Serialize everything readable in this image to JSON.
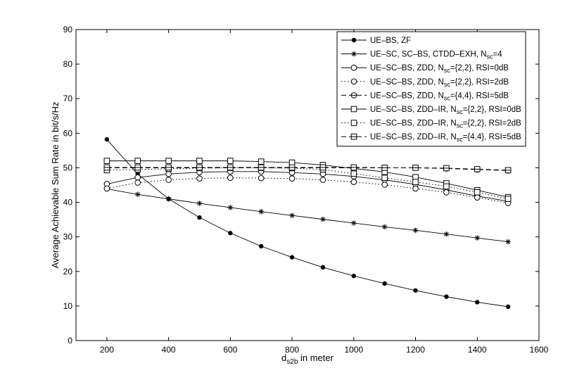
{
  "chart_data": {
    "type": "line",
    "title": "",
    "xlabel_main": "d",
    "xlabel_sub": "s2b",
    "xlabel_rest": " in meter",
    "ylabel": "Average Achievable Sum Rate in bit/s/Hz",
    "xlim": [
      100,
      1600
    ],
    "ylim": [
      0,
      90
    ],
    "xticks": [
      200,
      400,
      600,
      800,
      1000,
      1200,
      1400,
      1600
    ],
    "yticks": [
      0,
      10,
      20,
      30,
      40,
      50,
      60,
      70,
      80,
      90
    ],
    "legend_position": "top-right",
    "grid": false,
    "x": [
      200,
      300,
      400,
      500,
      600,
      700,
      800,
      900,
      1000,
      1100,
      1200,
      1300,
      1400,
      1500
    ],
    "series": [
      {
        "name_parts": [
          "UE–BS, ZF"
        ],
        "line": "solid",
        "marker": "dot",
        "values": [
          58.2,
          48.2,
          41.0,
          35.6,
          31.1,
          27.3,
          24.1,
          21.2,
          18.7,
          16.5,
          14.5,
          12.7,
          11.1,
          9.8
        ]
      },
      {
        "name_parts": [
          "UE–SC, SC–BS, CTDD–EXH, N",
          "sc",
          "=4"
        ],
        "line": "solid",
        "marker": "star",
        "values": [
          43.9,
          42.3,
          41.0,
          39.7,
          38.5,
          37.3,
          36.2,
          35.1,
          34.0,
          32.9,
          31.9,
          30.8,
          29.7,
          28.6
        ]
      },
      {
        "name_parts": [
          "UE–SC–BS, ZDD, N",
          "sc",
          "={2,2}, RSI=0dB"
        ],
        "line": "solid",
        "marker": "circle",
        "values": [
          45.3,
          47.2,
          48.2,
          48.7,
          48.9,
          48.9,
          48.6,
          48.2,
          47.5,
          46.5,
          45.2,
          43.6,
          41.8,
          40.3
        ]
      },
      {
        "name_parts": [
          "UE–SC–BS, ZDD, N",
          "sc",
          "={2,2}, RSI=2dB"
        ],
        "line": "dotted",
        "marker": "circle",
        "values": [
          44.0,
          45.7,
          46.5,
          46.9,
          47.1,
          47.0,
          46.9,
          46.5,
          45.9,
          45.1,
          44.0,
          42.9,
          41.4,
          39.8
        ]
      },
      {
        "name_parts": [
          "UE–SC–BS, ZDD, N",
          "sc",
          "={4,4}, RSI=5dB"
        ],
        "line": "dashed",
        "marker": "circle-minus",
        "values": [
          50.0,
          50.0,
          50.0,
          50.0,
          50.0,
          50.0,
          50.0,
          50.0,
          50.0,
          50.0,
          50.0,
          49.8,
          49.5,
          49.2
        ]
      },
      {
        "name_parts": [
          "UE–SC–BS, ZDD–IR, N",
          "sc",
          "={2,2}, RSI=0dB"
        ],
        "line": "solid",
        "marker": "square",
        "values": [
          52.0,
          52.0,
          52.0,
          52.0,
          52.0,
          51.8,
          51.5,
          50.8,
          49.8,
          48.8,
          47.3,
          45.5,
          43.5,
          41.5
        ]
      },
      {
        "name_parts": [
          "UE–SC–BS, ZDD–IR, N",
          "sc",
          "={2,2}, RSI=2dB"
        ],
        "line": "dotted",
        "marker": "square",
        "values": [
          49.3,
          49.5,
          49.7,
          49.9,
          50.0,
          50.0,
          49.9,
          49.5,
          48.3,
          47.1,
          45.9,
          44.6,
          42.9,
          41.0
        ]
      },
      {
        "name_parts": [
          "UE–SC–BS, ZDD–IR, N",
          "sc",
          "={4,4}, RSI=5dB"
        ],
        "line": "dashed",
        "marker": "square-minus",
        "values": [
          50.1,
          50.1,
          50.1,
          50.1,
          50.1,
          50.1,
          50.1,
          50.1,
          50.1,
          50.0,
          50.0,
          49.9,
          49.6,
          49.3
        ]
      }
    ]
  }
}
